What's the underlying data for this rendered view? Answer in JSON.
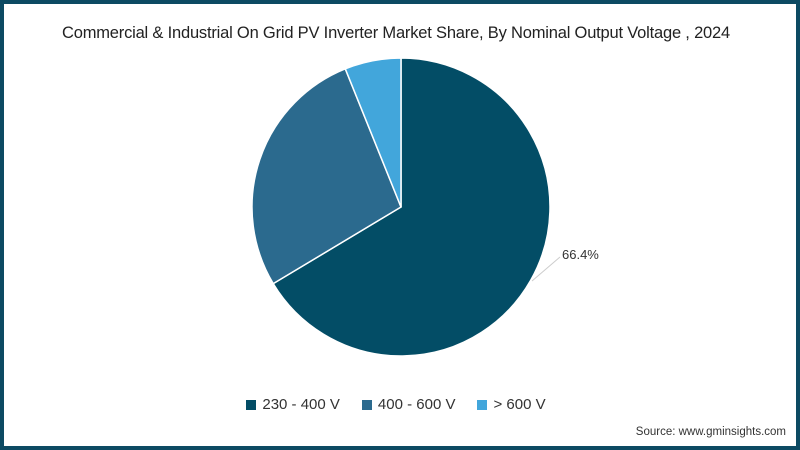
{
  "title": "Commercial & Industrial On Grid PV Inverter Market Share, By Nominal Output Voltage , 2024",
  "source": "Source: www.gminsights.com",
  "colors": {
    "border": "#0d4a63",
    "s1": "#034d66",
    "s2": "#2b6a8e",
    "s3": "#42a6db"
  },
  "chart_data": {
    "type": "pie",
    "title": "Commercial & Industrial On Grid PV Inverter Market Share, By Nominal Output Voltage , 2024",
    "categories": [
      "230 - 400 V",
      "400 - 600 V",
      "> 600 V"
    ],
    "values": [
      66.4,
      27.5,
      6.1
    ],
    "data_labels": [
      "66.4%",
      "",
      ""
    ],
    "legend_position": "bottom",
    "start_angle": "12 o'clock, clockwise"
  },
  "legend": [
    {
      "label": "230 - 400 V",
      "color": "#034d66"
    },
    {
      "label": "400 - 600 V",
      "color": "#2b6a8e"
    },
    {
      "label": "> 600 V",
      "color": "#42a6db"
    }
  ],
  "label_main": "66.4%"
}
